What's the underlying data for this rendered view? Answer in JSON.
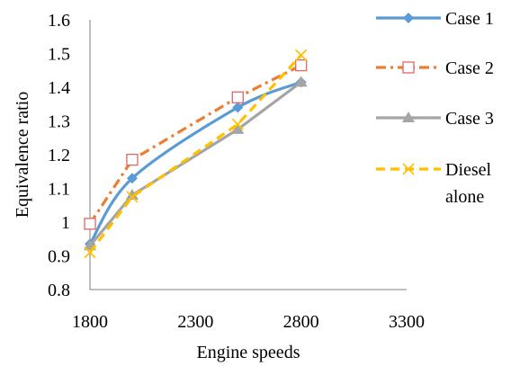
{
  "chart_data": {
    "type": "line",
    "xlabel": "Engine speeds",
    "ylabel": "Equivalence ratio",
    "xlim": [
      1800,
      3300
    ],
    "ylim": [
      0.8,
      1.6
    ],
    "xticks": [
      "1800",
      "2300",
      "2800",
      "3300"
    ],
    "yticks": [
      "0.8",
      "0.9",
      "1",
      "1.1",
      "1.2",
      "1.3",
      "1.4",
      "1.5",
      "1.6"
    ],
    "x": [
      1800,
      2000,
      2500,
      2800
    ],
    "legend_position": "right",
    "grid": false,
    "series": [
      {
        "name": "Case 1",
        "values": [
          0.935,
          1.13,
          1.34,
          1.415
        ],
        "color": "#5B9BD5",
        "marker": "diamond",
        "dash": "solid",
        "smooth": true
      },
      {
        "name": "Case 2",
        "values": [
          0.995,
          1.185,
          1.37,
          1.465
        ],
        "color": "#ED7D31",
        "marker": "square-open",
        "dash": "dashdot",
        "smooth": false
      },
      {
        "name": "Case 3",
        "values": [
          0.93,
          1.08,
          1.275,
          1.415
        ],
        "color": "#A5A5A5",
        "marker": "triangle",
        "dash": "solid",
        "smooth": false
      },
      {
        "name": "Diesel alone",
        "legend_lines": [
          "Diesel",
          "alone"
        ],
        "values": [
          0.91,
          1.075,
          1.29,
          1.495
        ],
        "color": "#FFC000",
        "marker": "x",
        "dash": "dashed",
        "smooth": false
      }
    ]
  }
}
